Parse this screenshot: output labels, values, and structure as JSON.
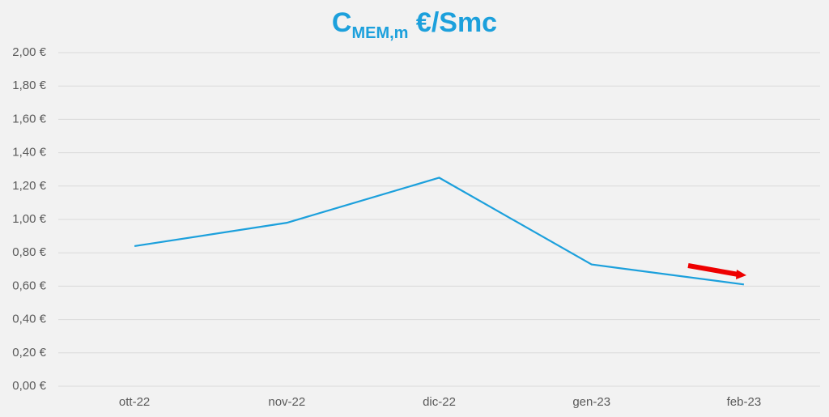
{
  "chart_data": {
    "type": "line",
    "title": "C",
    "title_subscript": "MEM,m",
    "title_suffix": "€/Smc",
    "categories": [
      "ott-22",
      "nov-22",
      "dic-22",
      "gen-23",
      "feb-23"
    ],
    "series": [
      {
        "name": "CMEM,m",
        "color": "#1ca0dc",
        "values": [
          0.84,
          0.98,
          1.25,
          0.73,
          0.61
        ]
      }
    ],
    "ylim": [
      0,
      2
    ],
    "yticks": [
      {
        "value": 0,
        "label": "0,00 €"
      },
      {
        "value": 0.2,
        "label": "0,20 €"
      },
      {
        "value": 0.4,
        "label": "0,40 €"
      },
      {
        "value": 0.6,
        "label": "0,60 €"
      },
      {
        "value": 0.8,
        "label": "0,80 €"
      },
      {
        "value": 1,
        "label": "1,00 €"
      },
      {
        "value": 1.2,
        "label": "1,20 €"
      },
      {
        "value": 1.4,
        "label": "1,40 €"
      },
      {
        "value": 1.6,
        "label": "1,60 €"
      },
      {
        "value": 1.8,
        "label": "1,80 €"
      },
      {
        "value": 2,
        "label": "2,00 €"
      }
    ],
    "grid": true
  }
}
